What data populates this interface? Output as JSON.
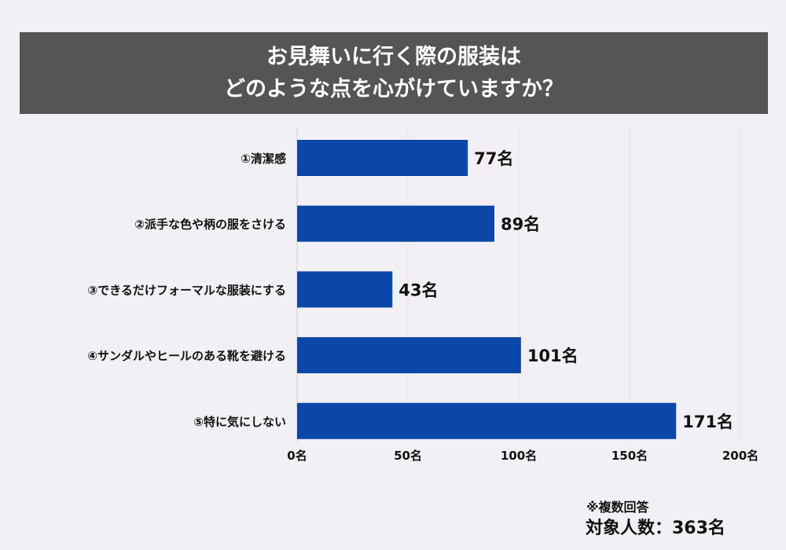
{
  "chart_data": {
    "type": "bar",
    "orientation": "horizontal",
    "title_lines": [
      "お見舞いに行く際の服装は",
      "どのような点を心がけていますか？"
    ],
    "categories": [
      "①清潔感",
      "②派手な色や柄の服をさける",
      "③できるだけフォーマルな服装にする",
      "④サンダルやヒールのある靴を避ける",
      "⑤特に気にしない"
    ],
    "values": [
      77,
      89,
      43,
      101,
      171
    ],
    "value_labels": [
      "77名",
      "89名",
      "43名",
      "101名",
      "171名"
    ],
    "xticks": [
      0,
      50,
      100,
      150,
      200
    ],
    "xtick_labels": [
      "0名",
      "50名",
      "100名",
      "150名",
      "200名"
    ],
    "xlim": [
      0,
      200
    ],
    "grid": true,
    "bar_color": "#0b47a8",
    "note": "※複数回答",
    "total": "対象人数：363名"
  }
}
